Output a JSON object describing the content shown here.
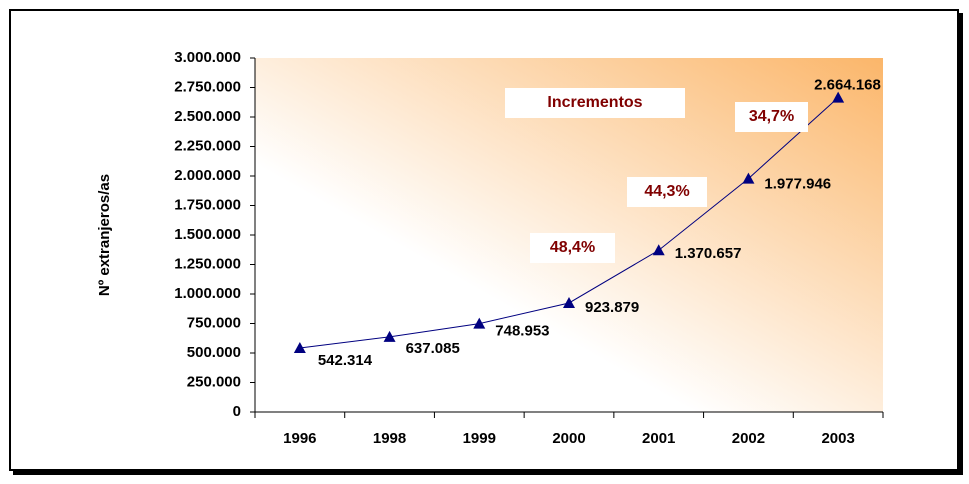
{
  "chart_data": {
    "type": "line",
    "y_axis_label": "Nº extranjeros/as",
    "categories": [
      "1996",
      "1998",
      "1999",
      "2000",
      "2001",
      "2002",
      "2003"
    ],
    "values": [
      542314,
      637085,
      748953,
      923879,
      1370657,
      1977946,
      2664168
    ],
    "value_labels": [
      "542.314",
      "637.085",
      "748.953",
      "923.879",
      "1.370.657",
      "1.977.946",
      "2.664.168"
    ],
    "color": "#000080",
    "ylim": [
      0,
      3000000
    ],
    "yticks": [
      0,
      {
        "value": 250000,
        "label": "250.000"
      },
      {
        "value": 500000,
        "label": "500.000"
      },
      {
        "value": 750000,
        "label": "750.000"
      },
      {
        "value": 1000000,
        "label": "1.000.000"
      },
      {
        "value": 1250000,
        "label": "1.250.000"
      },
      {
        "value": 1500000,
        "label": "1.500.000"
      },
      {
        "value": 1750000,
        "label": "1.750.000"
      },
      {
        "value": 2000000,
        "label": "2.000.000"
      },
      {
        "value": 2250000,
        "label": "2.250.000"
      },
      {
        "value": 2500000,
        "label": "2.500.000"
      },
      {
        "value": 2750000,
        "label": "2.750.000"
      },
      {
        "value": 3000000,
        "label": "3.000.000"
      }
    ],
    "grid": false,
    "annotations": [
      "Incrementos",
      "48,4%",
      "44,3%",
      "34,7%"
    ]
  }
}
